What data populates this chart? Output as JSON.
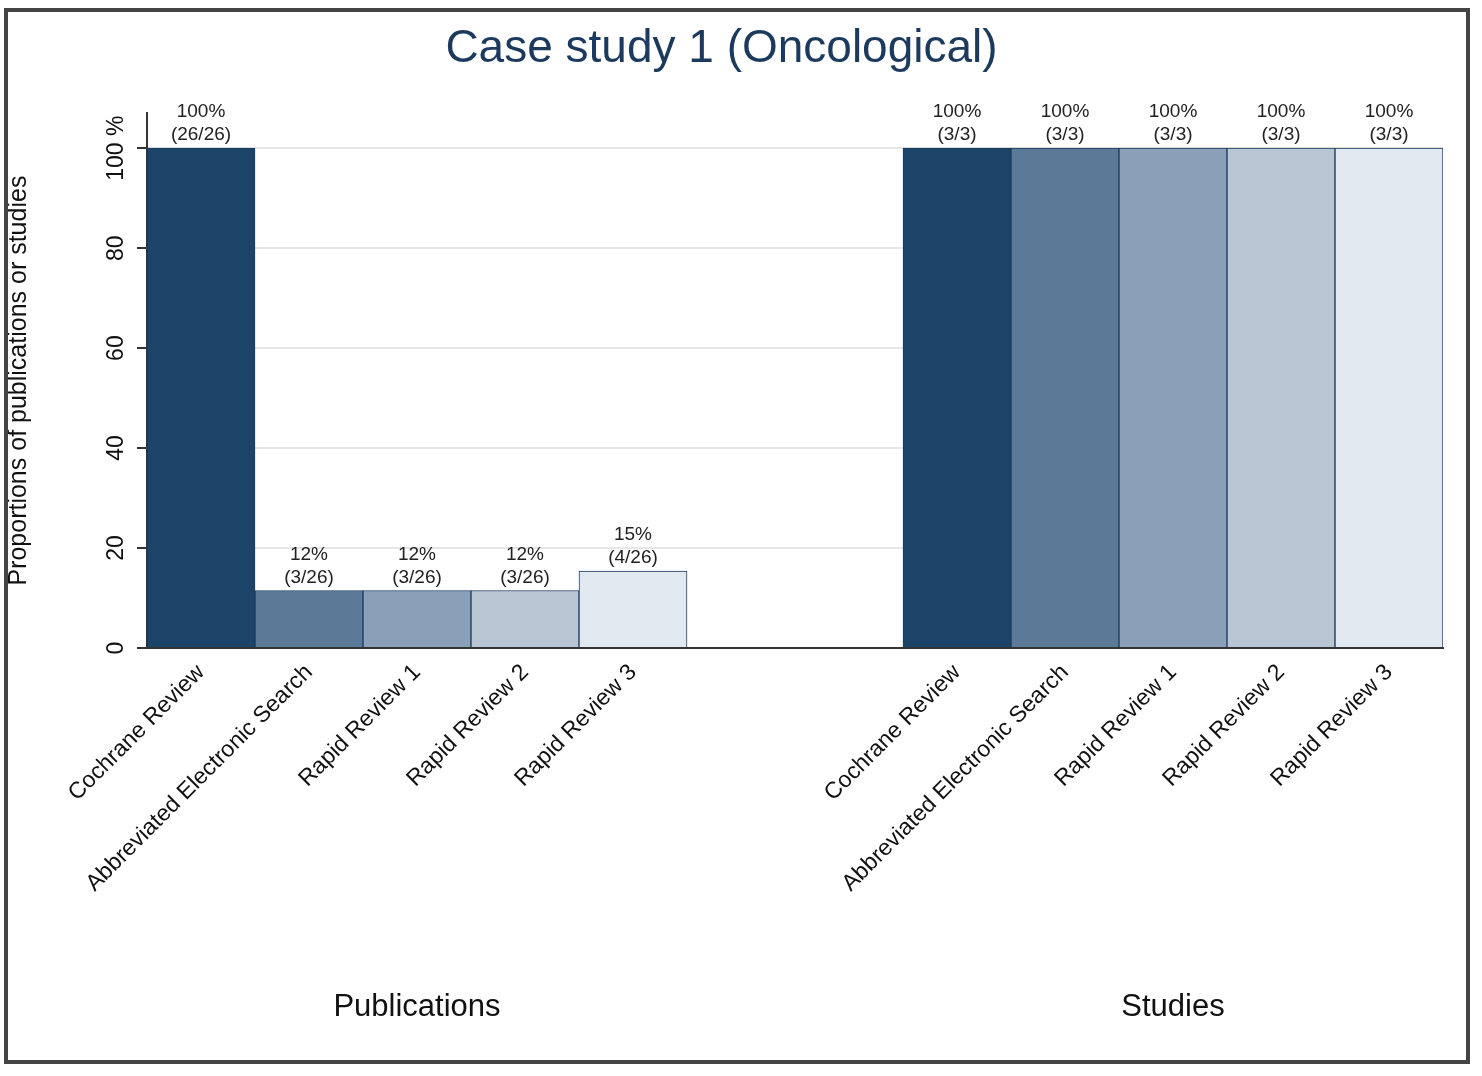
{
  "chart_data": {
    "type": "bar",
    "title": "Case study 1 (Oncological)",
    "ylabel": "Proportions of publications or studies",
    "categories": [
      "Cochrane Review",
      "Abbreviated Electronic Search",
      "Rapid Review 1",
      "Rapid Review 2",
      "Rapid Review 3",
      null,
      null,
      "Cochrane Review",
      "Abbreviated Electronic Search",
      "Rapid Review 1",
      "Rapid Review 2",
      "Rapid Review 3"
    ],
    "values": [
      100,
      11.5,
      11.5,
      11.5,
      15.4,
      null,
      null,
      100,
      100,
      100,
      100,
      100
    ],
    "colors": [
      "#1c4468",
      "#5a7a98",
      "#8aa0b8",
      "#b8c6d4",
      "#e2e8ef",
      null,
      null,
      "#1c4468",
      "#5a7a98",
      "#8aa0b8",
      "#b8c6d4",
      "#e2e8ef"
    ],
    "value_labels": [
      "100%\n(26/26)",
      "12%\n(3/26)",
      "12%\n(3/26)",
      "12%\n(3/26)",
      "15%\n(4/26)",
      null,
      null,
      "100%\n(3/3)",
      "100%\n(3/3)",
      "100%\n(3/3)",
      "100%\n(3/3)",
      "100%\n(3/3)"
    ],
    "ylim": [
      0,
      107
    ],
    "yticks": [
      0,
      20,
      40,
      60,
      80,
      {
        "value": 100,
        "label": "100 %"
      }
    ],
    "grid": "y",
    "legend": false,
    "annotations": [
      "Publications",
      "Studies"
    ]
  }
}
